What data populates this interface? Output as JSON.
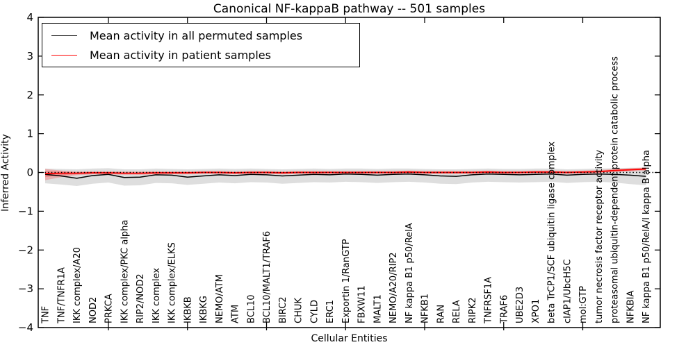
{
  "figure": {
    "title": "Canonical NF-kappaB pathway -- 501 samples",
    "xlabel": "Cellular Entities",
    "ylabel": "Inferred Activity"
  },
  "legend": {
    "entries": [
      {
        "label": "Mean activity in all permuted samples",
        "color": "#000000"
      },
      {
        "label": "Mean activity in patient samples",
        "color": "#ff0000"
      }
    ]
  },
  "chart_data": {
    "type": "line",
    "title": "Canonical NF-kappaB pathway -- 501 samples",
    "xlabel": "Cellular Entities",
    "ylabel": "Inferred Activity",
    "ylim": [
      -4,
      4
    ],
    "yticks": [
      4,
      3,
      2,
      1,
      0,
      -1,
      -2,
      -3,
      -4
    ],
    "ytick_labels": [
      "4",
      "3",
      "2",
      "1",
      "0",
      "−1",
      "−2",
      "−3",
      "−4"
    ],
    "xtick_mark_indices": [
      4,
      9,
      14,
      19,
      24,
      29,
      34
    ],
    "grid": false,
    "legend_position": "upper left",
    "zero_line": "dotted-black",
    "categories": [
      "TNF",
      "TNF/TNFR1A",
      "IKK complex/A20",
      "NOD2",
      "PRKCA",
      "IKK complex/PKC alpha",
      "RIP2/NOD2",
      "IKK complex",
      "IKK complex/ELKS",
      "IKBKB",
      "IKBKG",
      "NEMO/ATM",
      "ATM",
      "BCL10",
      "BCL10/MALT1/TRAF6",
      "BIRC2",
      "CHUK",
      "CYLD",
      "ERC1",
      "Exportin 1/RanGTP",
      "FBXW11",
      "MALT1",
      "NEMO/A20/RIP2",
      "NF kappa B1 p50/RelA",
      "NFKB1",
      "RAN",
      "RELA",
      "RIPK2",
      "TNFRSF1A",
      "TRAF6",
      "UBE2D3",
      "XPO1",
      "beta TrCP1/SCF ubiquitin ligase complex",
      "cIAP1/UbcH5C",
      "mol:GTP",
      "tumor necrosis factor receptor activity",
      "proteasomal ubiquitin-dependent protein catabolic process",
      "NFKBIA",
      "NF kappa B1 p50/RelA/I kappa B alpha"
    ],
    "series": [
      {
        "name": "Mean activity in all permuted samples",
        "color": "#000000",
        "band_color": "#999999",
        "values": [
          -0.05,
          -0.09,
          -0.15,
          -0.08,
          -0.05,
          -0.13,
          -0.12,
          -0.06,
          -0.07,
          -0.12,
          -0.09,
          -0.06,
          -0.08,
          -0.05,
          -0.06,
          -0.09,
          -0.07,
          -0.05,
          -0.06,
          -0.04,
          -0.05,
          -0.07,
          -0.05,
          -0.04,
          -0.06,
          -0.09,
          -0.1,
          -0.06,
          -0.04,
          -0.05,
          -0.06,
          -0.05,
          -0.04,
          -0.07,
          -0.05,
          -0.04,
          -0.05,
          -0.07,
          -0.1
        ],
        "band_upper": [
          0.1,
          0.09,
          0.08,
          0.1,
          0.11,
          0.08,
          0.08,
          0.1,
          0.09,
          0.08,
          0.09,
          0.1,
          0.09,
          0.1,
          0.09,
          0.08,
          0.09,
          0.1,
          0.09,
          0.1,
          0.1,
          0.09,
          0.1,
          0.1,
          0.09,
          0.08,
          0.08,
          0.09,
          0.1,
          0.09,
          0.09,
          0.1,
          0.1,
          0.08,
          0.09,
          0.1,
          0.11,
          0.12,
          0.12
        ],
        "band_lower": [
          -0.28,
          -0.31,
          -0.35,
          -0.29,
          -0.26,
          -0.34,
          -0.33,
          -0.27,
          -0.28,
          -0.32,
          -0.29,
          -0.26,
          -0.28,
          -0.25,
          -0.26,
          -0.29,
          -0.27,
          -0.25,
          -0.26,
          -0.24,
          -0.25,
          -0.27,
          -0.25,
          -0.24,
          -0.26,
          -0.29,
          -0.3,
          -0.26,
          -0.24,
          -0.25,
          -0.26,
          -0.25,
          -0.24,
          -0.27,
          -0.25,
          -0.24,
          -0.26,
          -0.3,
          -0.33
        ]
      },
      {
        "name": "Mean activity in patient samples",
        "color": "#ff0000",
        "band_color": "#ff3333",
        "values": [
          -0.03,
          -0.02,
          -0.02,
          -0.01,
          -0.01,
          -0.02,
          -0.02,
          -0.01,
          -0.01,
          -0.01,
          0.0,
          0.0,
          -0.01,
          0.0,
          0.0,
          -0.01,
          0.0,
          0.0,
          0.0,
          0.0,
          0.0,
          0.0,
          0.0,
          0.01,
          0.0,
          0.0,
          0.0,
          0.0,
          0.01,
          0.0,
          0.0,
          0.01,
          0.01,
          0.0,
          0.01,
          0.02,
          0.05,
          0.07,
          0.09
        ],
        "band_upper": [
          0.09,
          0.05,
          0.02,
          0.03,
          0.03,
          0.02,
          0.02,
          0.03,
          0.03,
          0.03,
          0.04,
          0.04,
          0.03,
          0.04,
          0.04,
          0.03,
          0.04,
          0.04,
          0.04,
          0.04,
          0.04,
          0.04,
          0.04,
          0.05,
          0.04,
          0.04,
          0.04,
          0.04,
          0.05,
          0.04,
          0.04,
          0.05,
          0.05,
          0.04,
          0.05,
          0.06,
          0.09,
          0.11,
          0.13
        ],
        "band_lower": [
          -0.2,
          -0.12,
          -0.07,
          -0.05,
          -0.05,
          -0.06,
          -0.06,
          -0.05,
          -0.05,
          -0.05,
          -0.04,
          -0.04,
          -0.05,
          -0.04,
          -0.04,
          -0.05,
          -0.04,
          -0.04,
          -0.04,
          -0.04,
          -0.04,
          -0.04,
          -0.04,
          -0.03,
          -0.04,
          -0.04,
          -0.04,
          -0.04,
          -0.03,
          -0.04,
          -0.04,
          -0.03,
          -0.03,
          -0.04,
          -0.03,
          -0.02,
          0.01,
          0.03,
          0.05
        ],
        "band_inner_upper": [
          0.03,
          0.02,
          0.0,
          0.01,
          0.01,
          0.0,
          0.0,
          0.01,
          0.01,
          0.01,
          0.02,
          0.02,
          0.01,
          0.02,
          0.02,
          0.01,
          0.02,
          0.02,
          0.02,
          0.02,
          0.02,
          0.02,
          0.02,
          0.03,
          0.02,
          0.02,
          0.02,
          0.02,
          0.03,
          0.02,
          0.02,
          0.03,
          0.03,
          0.02,
          0.03,
          0.04,
          0.07,
          0.09,
          0.11
        ],
        "band_inner_lower": [
          -0.12,
          -0.07,
          -0.05,
          -0.03,
          -0.03,
          -0.04,
          -0.04,
          -0.03,
          -0.03,
          -0.03,
          -0.02,
          -0.02,
          -0.03,
          -0.02,
          -0.02,
          -0.03,
          -0.02,
          -0.02,
          -0.02,
          -0.02,
          -0.02,
          -0.02,
          -0.02,
          -0.01,
          -0.02,
          -0.02,
          -0.02,
          -0.02,
          -0.01,
          -0.02,
          -0.02,
          -0.01,
          -0.01,
          -0.02,
          -0.01,
          0.0,
          0.03,
          0.05,
          0.07
        ]
      }
    ]
  }
}
